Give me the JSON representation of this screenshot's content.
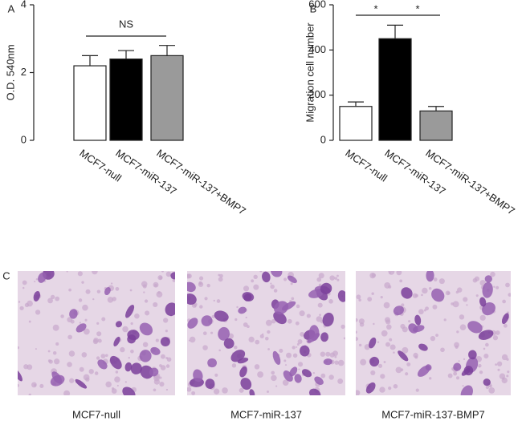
{
  "chart_data": [
    {
      "type": "bar",
      "panel": "A",
      "ylabel": "O.D. 540nm",
      "categories": [
        "MCF7-null",
        "MCF7-miR-137",
        "MCF7-miR-137+BMP7"
      ],
      "values": [
        2.2,
        2.4,
        2.5
      ],
      "errors": [
        0.3,
        0.25,
        0.3
      ],
      "colors": [
        "#ffffff",
        "#000000",
        "#9a9a9a"
      ],
      "ylim": [
        0,
        4
      ],
      "yticks": [
        0,
        2,
        4
      ],
      "annotations": [
        "NS"
      ]
    },
    {
      "type": "bar",
      "panel": "B",
      "ylabel": "Migration cell number",
      "categories": [
        "MCF7-null",
        "MCF7-miR-137",
        "MCF7-miR-137+BMP7"
      ],
      "values": [
        150,
        450,
        130
      ],
      "errors": [
        20,
        60,
        20
      ],
      "colors": [
        "#ffffff",
        "#000000",
        "#9a9a9a"
      ],
      "ylim": [
        0,
        600
      ],
      "yticks": [
        0,
        200,
        400,
        600
      ],
      "annotations": [
        "*",
        "*"
      ]
    }
  ],
  "panel_c": {
    "label": "C",
    "captions": [
      "MCF7-null",
      "MCF7-miR-137",
      "MCF7-miR-137-BMP7"
    ]
  }
}
